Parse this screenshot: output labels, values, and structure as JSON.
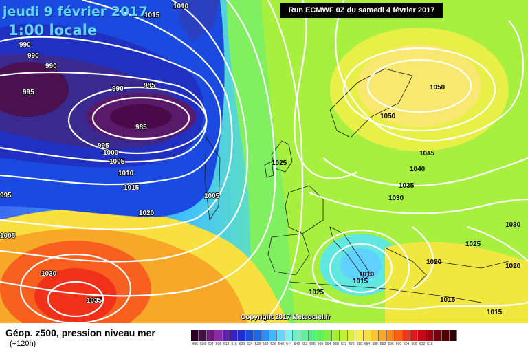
{
  "header": {
    "date_title": "jeudi 9 février 2017",
    "time_title": "1:00 locale",
    "run_info": "Run ECMWF 0Z du samedi 4 février 2017"
  },
  "copyright": "Copyright 2017 Meteociel.fr",
  "footer": {
    "title": "Géop. z500, pression niveau mer",
    "subtitle": "(+120h)"
  },
  "scale_colors": [
    "#2d0026",
    "#4a0a4a",
    "#6a1a7a",
    "#8a2aa0",
    "#6020b0",
    "#3a20c0",
    "#2030d0",
    "#1a4ae0",
    "#1a6af0",
    "#2a90f8",
    "#40b8ff",
    "#60d8ff",
    "#80f0f0",
    "#70f0c0",
    "#60f0a0",
    "#50f080",
    "#60f060",
    "#80f040",
    "#a0f030",
    "#c0f030",
    "#e0f040",
    "#f8f048",
    "#f8e040",
    "#f8c830",
    "#f8a828",
    "#f88820",
    "#f86018",
    "#f03818",
    "#e01818",
    "#c80818",
    "#a00010",
    "#780008",
    "#500008",
    "#300000"
  ],
  "scale_labels": [
    "496",
    "500",
    "504",
    "508",
    "512",
    "516",
    "520",
    "524",
    "528",
    "532",
    "536",
    "540",
    "544",
    "548",
    "552",
    "556",
    "560",
    "564",
    "568",
    "572",
    "576",
    "580",
    "584",
    "588",
    "592",
    "596",
    "600",
    "604",
    "608",
    "612",
    "616",
    "",
    "",
    ""
  ],
  "isobar_labels": [
    {
      "text": "1015",
      "color": "white"
    },
    {
      "text": "1010",
      "color": "white"
    },
    {
      "text": "990",
      "color": "white"
    },
    {
      "text": "990",
      "color": "white"
    },
    {
      "text": "990",
      "color": "white"
    },
    {
      "text": "995",
      "color": "white"
    },
    {
      "text": "990",
      "color": "white"
    },
    {
      "text": "985",
      "color": "white"
    },
    {
      "text": "985",
      "color": "white"
    },
    {
      "text": "995",
      "color": "white"
    },
    {
      "text": "1000",
      "color": "white"
    },
    {
      "text": "1005",
      "color": "white"
    },
    {
      "text": "1010",
      "color": "white"
    },
    {
      "text": "1015",
      "color": "white"
    },
    {
      "text": "995",
      "color": "white"
    },
    {
      "text": "1020",
      "color": "white"
    },
    {
      "text": "1005",
      "color": "white"
    },
    {
      "text": "1005",
      "color": "white"
    },
    {
      "text": "1030",
      "color": "white"
    },
    {
      "text": "1035",
      "color": "white"
    },
    {
      "text": "1025",
      "color": "dark"
    },
    {
      "text": "1050",
      "color": "dark"
    },
    {
      "text": "1050",
      "color": "dark"
    },
    {
      "text": "1045",
      "color": "dark"
    },
    {
      "text": "1040",
      "color": "dark"
    },
    {
      "text": "1035",
      "color": "dark"
    },
    {
      "text": "1030",
      "color": "dark"
    },
    {
      "text": "1030",
      "color": "dark"
    },
    {
      "text": "1025",
      "color": "dark"
    },
    {
      "text": "1020",
      "color": "dark"
    },
    {
      "text": "1020",
      "color": "dark"
    },
    {
      "text": "1010",
      "color": "dark"
    },
    {
      "text": "1015",
      "color": "dark"
    },
    {
      "text": "1025",
      "color": "dark"
    },
    {
      "text": "1015",
      "color": "dark"
    },
    {
      "text": "1015",
      "color": "dark"
    }
  ]
}
